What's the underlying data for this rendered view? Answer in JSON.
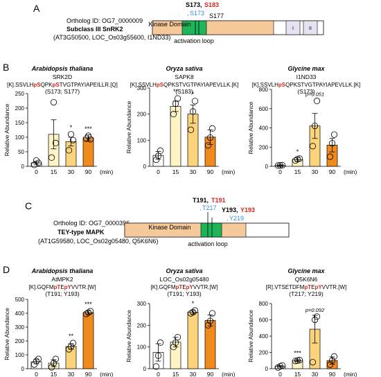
{
  "colors": {
    "kinase": "#f5c99a",
    "activation_loop": "#1db45a",
    "regulatory": "#e6e2f2",
    "red": "#d7261e",
    "blue": "#2f8fd8",
    "bar_0": "#ffffff",
    "bar_15": "#fdf3c4",
    "bar_30": "#fbd37a",
    "bar_90": "#f08a1c"
  },
  "panelA": {
    "letter": "A",
    "ortholog": "Ortholog ID: OG7_0000009",
    "subclass": "Subclass III SnRK2",
    "ids": "(AT3G50500, LOC_Os03g55600, I1ND33)",
    "domain": "Kinase Domain",
    "loop_label": "activation loop",
    "site_top_black": "S173,",
    "site_top_red": "S183",
    "site_blue": "S173",
    "site_blue_comma": ",",
    "site_right": "S177",
    "box1": "I",
    "box2": "II"
  },
  "panelB": {
    "letter": "B",
    "ylabel": "Relative Abundance",
    "xunit": "(min)",
    "charts": [
      {
        "species": "Arabidopsis thaliana",
        "protein": "SRK2D",
        "pep_parts": [
          "[K].SSVLH",
          "pS",
          "QPK",
          "pS",
          "TVGTPAYIAPEILLR.[Q]"
        ],
        "sites": "(S173; S177)"
      },
      {
        "species": "Oryza sativa",
        "protein": "SAPK8",
        "pep_parts": [
          "[K].SSVLH",
          "pS",
          "QPKSTVGTPAYIAPEVLLK.[K]"
        ],
        "sites": "(S183)"
      },
      {
        "species": "Glycine max",
        "protein": "I1ND33",
        "pep_parts": [
          "[K].SSVLH",
          "pS",
          "QPKSTVGTPAYIAPEVLLK.[K]"
        ],
        "sites": "(S173)"
      }
    ]
  },
  "panelC": {
    "letter": "C",
    "ortholog": "Ortholog ID: OG7_0000396",
    "subclass": "TEY-type MAPK",
    "ids": "(AT1G59580, LOC_Os02g05480, Q5K6N6)",
    "domain": "Kinase Domain",
    "loop_label": "activation loop",
    "site_t_black": "T191,",
    "site_t_red": "T191",
    "site_t_blue": "T217",
    "site_y_black": "Y193,",
    "site_y_red": "Y193",
    "site_y_blue": "Y219",
    "comma": ","
  },
  "panelD": {
    "letter": "D",
    "ylabel": "Relative Abundance",
    "xunit": "(min)",
    "charts": [
      {
        "species": "Arabidopsis thaliana",
        "protein": "AtMPK2",
        "pep_parts": [
          "[K].GQFM",
          "pT",
          "E",
          "pY",
          "VVTR.[W]"
        ],
        "sites": "(T191; Y193)"
      },
      {
        "species": "Oryza sativa",
        "protein": "LOC_Os02g05480",
        "pep_parts": [
          "[K].GQFM",
          "pT",
          "E",
          "pY",
          "VVTR.[W]"
        ],
        "sites": "(T191; Y193)"
      },
      {
        "species": "Glycine max",
        "protein": "Q5K6N6",
        "pep_parts": [
          "[R].VTSETDFM",
          "pT",
          "E",
          "pY",
          "VVTR.[W]"
        ],
        "sites": "(T217; Y219)"
      }
    ]
  },
  "chart_data": [
    {
      "type": "bar",
      "panel": "B",
      "title": "Arabidopsis thaliana",
      "categories": [
        "0",
        "15",
        "30",
        "90"
      ],
      "xlabel": "(min)",
      "ylabel": "Relative Abundance",
      "ylim": [
        0,
        250
      ],
      "yticks": [
        0,
        50,
        100,
        150,
        200,
        250
      ],
      "values": [
        12,
        110,
        85,
        98
      ],
      "errors": [
        5,
        50,
        15,
        10
      ],
      "points": [
        [
          5,
          20,
          12
        ],
        [
          30,
          220,
          80
        ],
        [
          55,
          110,
          90
        ],
        [
          95,
          105,
          93
        ]
      ],
      "sig": [
        "",
        "",
        "*",
        "***"
      ]
    },
    {
      "type": "bar",
      "panel": "B",
      "title": "Oryza sativa",
      "categories": [
        "0",
        "15",
        "30",
        "90"
      ],
      "xlabel": "(min)",
      "ylabel": "Relative Abundance",
      "ylim": [
        0,
        300
      ],
      "yticks": [
        0,
        100,
        200,
        300
      ],
      "values": [
        42,
        230,
        200,
        112
      ],
      "errors": [
        15,
        20,
        35,
        28
      ],
      "points": [
        [
          25,
          40,
          60
        ],
        [
          200,
          240,
          260
        ],
        [
          140,
          210,
          250
        ],
        [
          80,
          110,
          145
        ]
      ],
      "sig": [
        "",
        "**",
        "*",
        ""
      ]
    },
    {
      "type": "bar",
      "panel": "B",
      "title": "Glycine max",
      "categories": [
        "0",
        "15",
        "30",
        "90"
      ],
      "xlabel": "(min)",
      "ylabel": "Relative Abundance",
      "ylim": [
        0,
        800
      ],
      "yticks": [
        0,
        200,
        400,
        600,
        800
      ],
      "values": [
        10,
        70,
        420,
        220
      ],
      "errors": [
        5,
        20,
        130,
        70
      ],
      "points": [
        [
          8,
          10,
          12
        ],
        [
          60,
          75,
          80
        ],
        [
          210,
          420,
          680
        ],
        [
          100,
          240,
          330
        ]
      ],
      "sig": [
        "",
        "*",
        "p=0.051",
        ""
      ]
    },
    {
      "type": "bar",
      "panel": "D",
      "title": "Arabidopsis thaliana",
      "categories": [
        "0",
        "15",
        "30",
        "90"
      ],
      "xlabel": "(min)",
      "ylabel": "Relative Abundance",
      "ylim": [
        0,
        500
      ],
      "yticks": [
        0,
        100,
        200,
        300,
        400,
        500
      ],
      "values": [
        50,
        40,
        160,
        405
      ],
      "errors": [
        15,
        25,
        20,
        12
      ],
      "points": [
        [
          30,
          55,
          70
        ],
        [
          10,
          40,
          70
        ],
        [
          140,
          160,
          185
        ],
        [
          395,
          405,
          415
        ]
      ],
      "sig": [
        "",
        "",
        "**",
        "***"
      ]
    },
    {
      "type": "bar",
      "panel": "D",
      "title": "Oryza sativa",
      "categories": [
        "0",
        "15",
        "30",
        "90"
      ],
      "xlabel": "(min)",
      "ylabel": "Relative Abundance",
      "ylim": [
        0,
        300
      ],
      "yticks": [
        0,
        100,
        200,
        300
      ],
      "values": [
        75,
        122,
        260,
        222
      ],
      "errors": [
        40,
        22,
        8,
        25
      ],
      "points": [
        [
          10,
          60,
          120
        ],
        [
          100,
          120,
          145
        ],
        [
          255,
          260,
          268
        ],
        [
          200,
          220,
          255
        ]
      ],
      "sig": [
        "",
        "",
        "*",
        ""
      ]
    },
    {
      "type": "bar",
      "panel": "D",
      "title": "Glycine max",
      "categories": [
        "0",
        "15",
        "30",
        "90"
      ],
      "xlabel": "(min)",
      "ylabel": "Relative Abundance",
      "ylim": [
        0,
        800
      ],
      "yticks": [
        0,
        200,
        400,
        600,
        800
      ],
      "values": [
        28,
        100,
        485,
        100
      ],
      "errors": [
        10,
        10,
        170,
        45
      ],
      "points": [
        [
          15,
          30,
          40
        ],
        [
          95,
          100,
          105
        ],
        [
          80,
          600,
          640
        ],
        [
          50,
          100,
          150
        ]
      ],
      "sig": [
        "",
        "***",
        "p=0.092",
        ""
      ]
    }
  ]
}
